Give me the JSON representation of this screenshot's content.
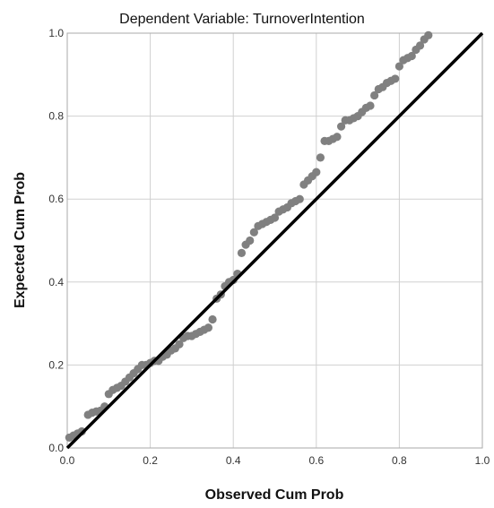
{
  "chart_data": {
    "type": "scatter",
    "title": "Dependent Variable: TurnoverIntention",
    "xlabel": "Observed Cum Prob",
    "ylabel": "Expected Cum Prob",
    "xlim": [
      0,
      1
    ],
    "ylim": [
      0,
      1
    ],
    "x_ticks": [
      "0.0",
      "0.2",
      "0.4",
      "0.6",
      "0.8",
      "1.0"
    ],
    "y_ticks": [
      "0.0",
      "0.2",
      "0.4",
      "0.6",
      "0.8",
      "1.0"
    ],
    "grid": true,
    "reference_line": {
      "x": [
        0,
        1
      ],
      "y": [
        0,
        1
      ]
    },
    "colors": {
      "points": "#808080",
      "reference_line": "#000000",
      "grid": "#d0d0d0",
      "frame": "#aaaaaa"
    },
    "points": [
      [
        0.005,
        0.025
      ],
      [
        0.015,
        0.03
      ],
      [
        0.025,
        0.035
      ],
      [
        0.035,
        0.04
      ],
      [
        0.05,
        0.08
      ],
      [
        0.06,
        0.085
      ],
      [
        0.07,
        0.088
      ],
      [
        0.08,
        0.09
      ],
      [
        0.09,
        0.1
      ],
      [
        0.1,
        0.13
      ],
      [
        0.11,
        0.14
      ],
      [
        0.12,
        0.145
      ],
      [
        0.13,
        0.15
      ],
      [
        0.14,
        0.16
      ],
      [
        0.15,
        0.17
      ],
      [
        0.16,
        0.18
      ],
      [
        0.17,
        0.19
      ],
      [
        0.18,
        0.2
      ],
      [
        0.19,
        0.2
      ],
      [
        0.2,
        0.205
      ],
      [
        0.21,
        0.21
      ],
      [
        0.22,
        0.21
      ],
      [
        0.23,
        0.22
      ],
      [
        0.24,
        0.225
      ],
      [
        0.25,
        0.235
      ],
      [
        0.26,
        0.24
      ],
      [
        0.27,
        0.25
      ],
      [
        0.28,
        0.265
      ],
      [
        0.29,
        0.27
      ],
      [
        0.3,
        0.27
      ],
      [
        0.31,
        0.275
      ],
      [
        0.32,
        0.28
      ],
      [
        0.33,
        0.285
      ],
      [
        0.34,
        0.29
      ],
      [
        0.35,
        0.31
      ],
      [
        0.36,
        0.36
      ],
      [
        0.37,
        0.37
      ],
      [
        0.38,
        0.39
      ],
      [
        0.39,
        0.4
      ],
      [
        0.4,
        0.405
      ],
      [
        0.41,
        0.42
      ],
      [
        0.42,
        0.47
      ],
      [
        0.43,
        0.49
      ],
      [
        0.44,
        0.5
      ],
      [
        0.45,
        0.52
      ],
      [
        0.46,
        0.535
      ],
      [
        0.47,
        0.54
      ],
      [
        0.48,
        0.545
      ],
      [
        0.49,
        0.55
      ],
      [
        0.5,
        0.555
      ],
      [
        0.51,
        0.57
      ],
      [
        0.52,
        0.575
      ],
      [
        0.53,
        0.58
      ],
      [
        0.54,
        0.59
      ],
      [
        0.55,
        0.595
      ],
      [
        0.56,
        0.6
      ],
      [
        0.57,
        0.635
      ],
      [
        0.58,
        0.645
      ],
      [
        0.59,
        0.655
      ],
      [
        0.6,
        0.665
      ],
      [
        0.61,
        0.7
      ],
      [
        0.62,
        0.74
      ],
      [
        0.63,
        0.74
      ],
      [
        0.64,
        0.745
      ],
      [
        0.65,
        0.75
      ],
      [
        0.66,
        0.775
      ],
      [
        0.67,
        0.79
      ],
      [
        0.68,
        0.79
      ],
      [
        0.69,
        0.795
      ],
      [
        0.7,
        0.8
      ],
      [
        0.71,
        0.81
      ],
      [
        0.72,
        0.82
      ],
      [
        0.73,
        0.825
      ],
      [
        0.74,
        0.85
      ],
      [
        0.75,
        0.865
      ],
      [
        0.76,
        0.87
      ],
      [
        0.77,
        0.88
      ],
      [
        0.78,
        0.885
      ],
      [
        0.79,
        0.89
      ],
      [
        0.8,
        0.92
      ],
      [
        0.81,
        0.935
      ],
      [
        0.82,
        0.94
      ],
      [
        0.83,
        0.945
      ],
      [
        0.84,
        0.96
      ],
      [
        0.85,
        0.97
      ],
      [
        0.86,
        0.985
      ],
      [
        0.87,
        0.995
      ]
    ]
  }
}
